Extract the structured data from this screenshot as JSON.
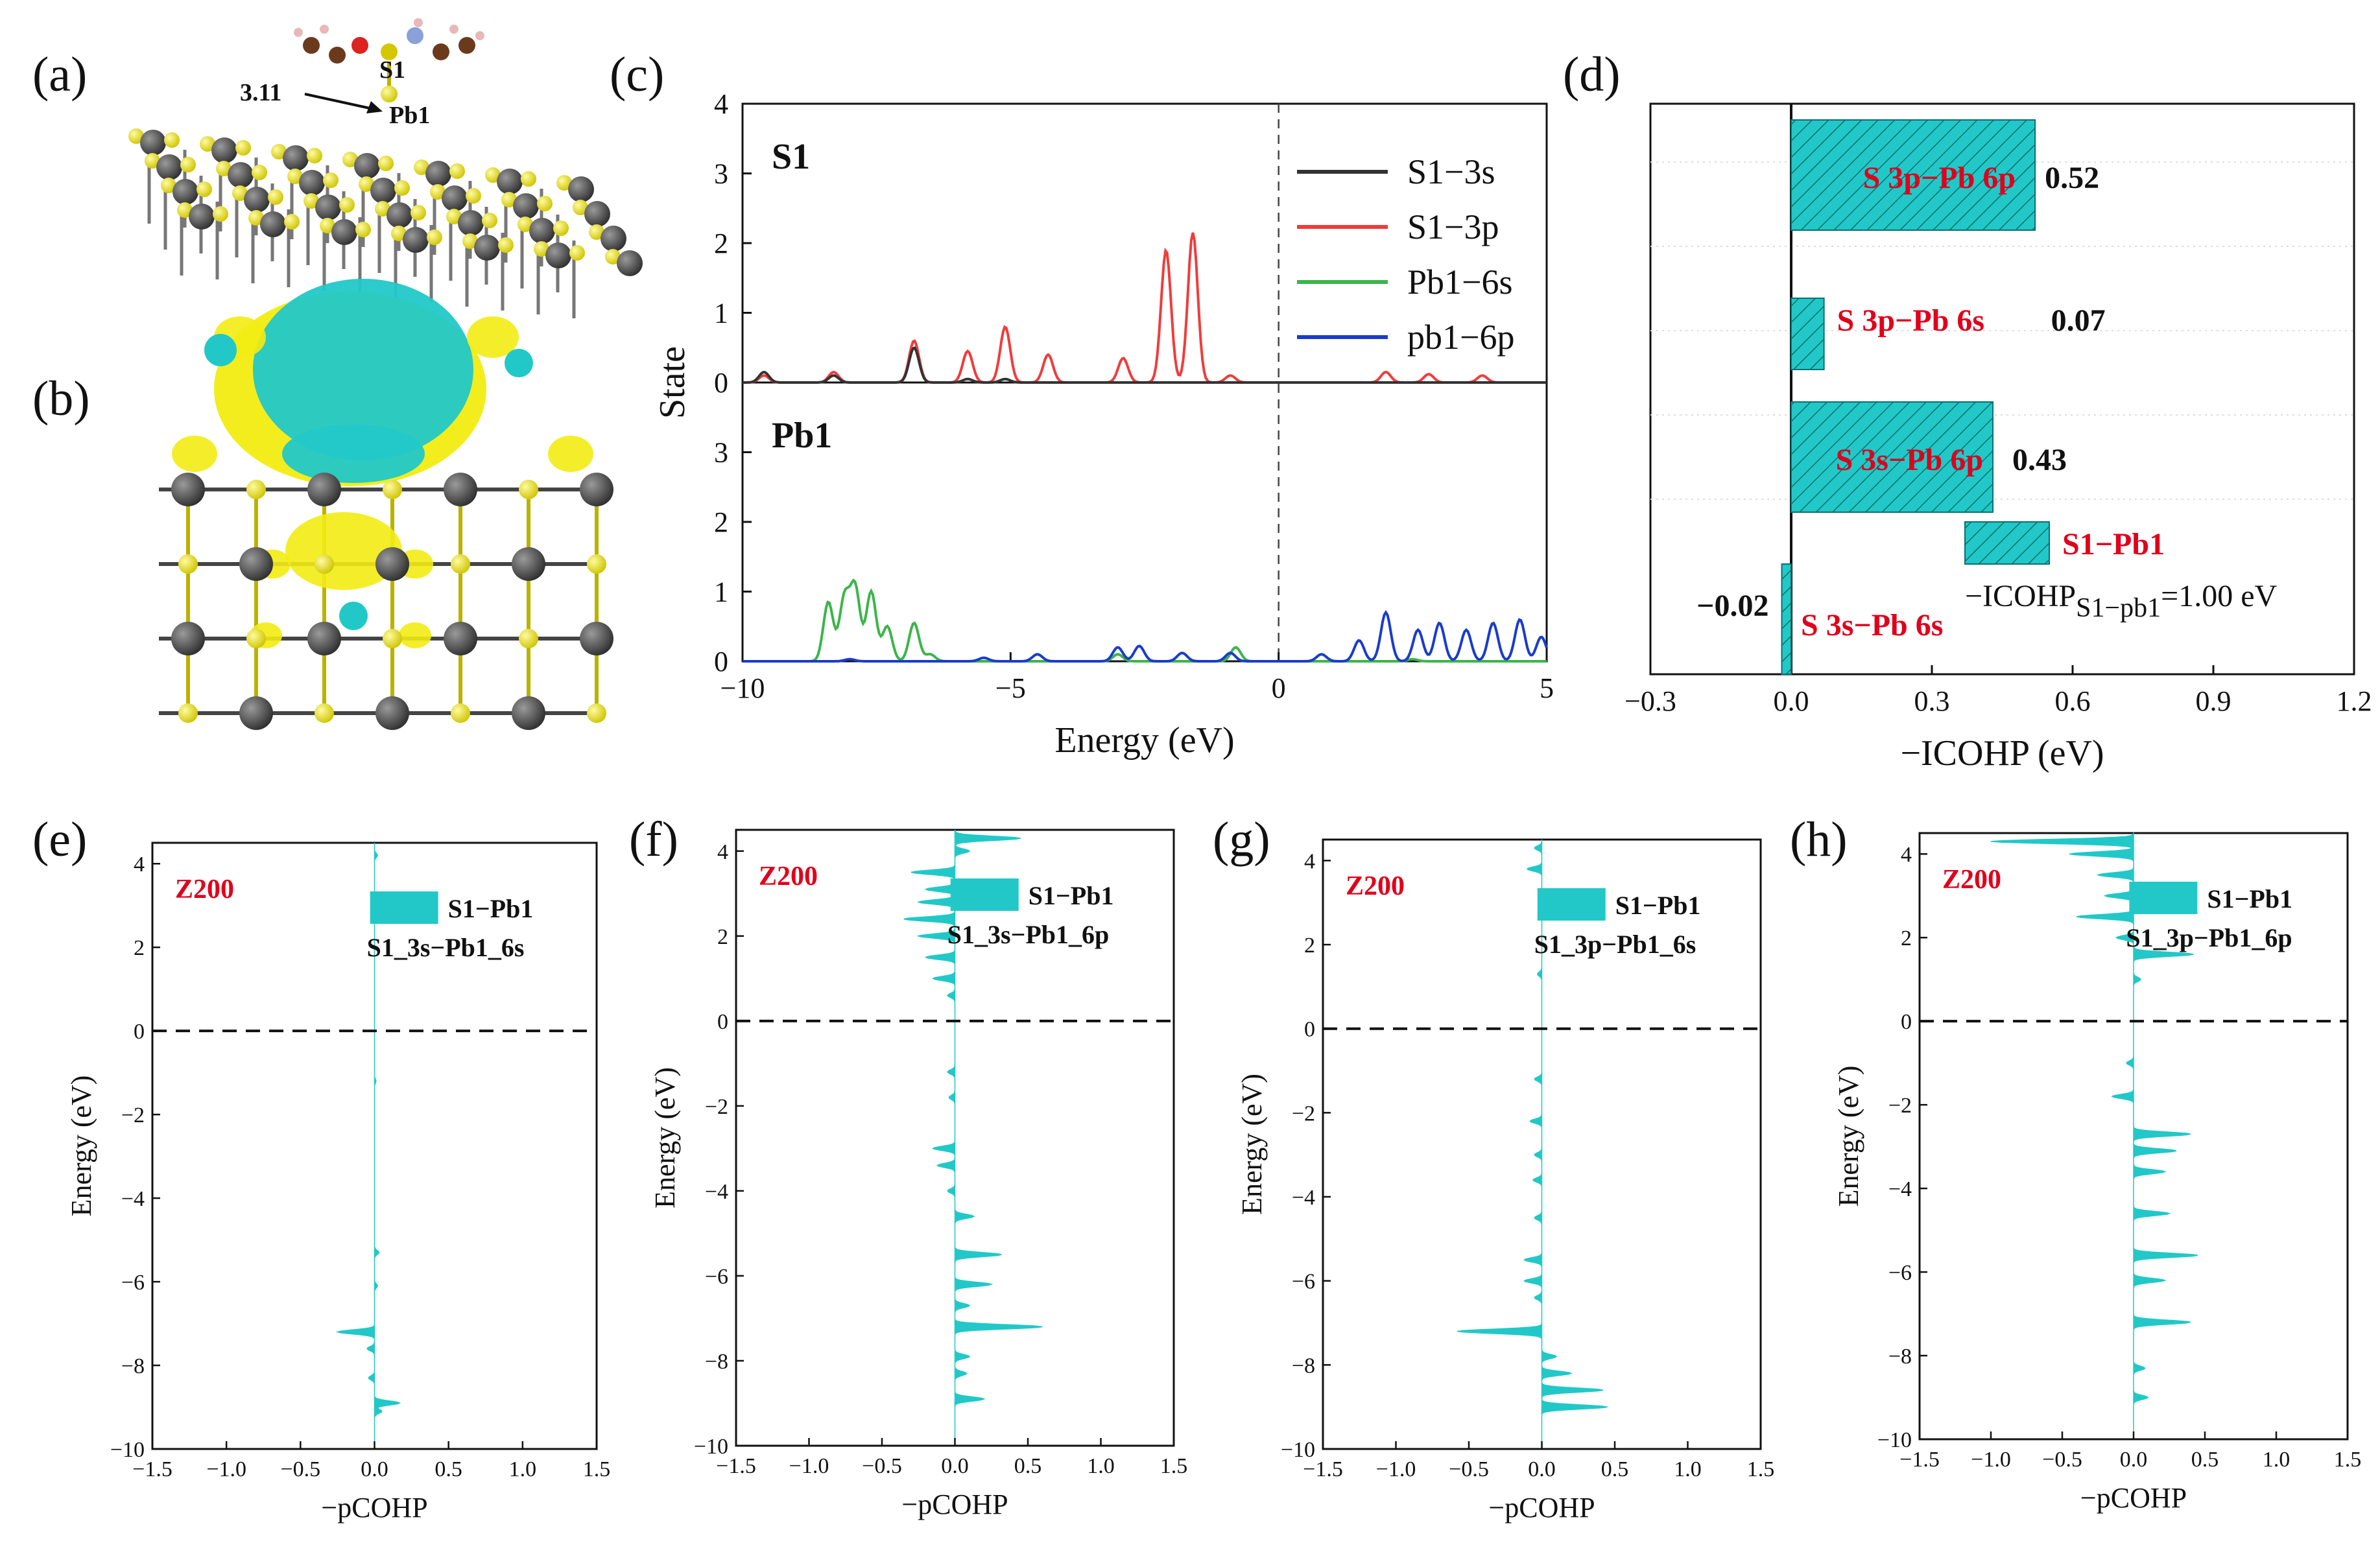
{
  "panel_labels": {
    "a": "(a)",
    "b": "(b)",
    "c": "(c)",
    "d": "(d)",
    "e": "(e)",
    "f": "(f)",
    "g": "(g)",
    "h": "(h)"
  },
  "panel_a": {
    "distance": "3.11",
    "s_label": "S1",
    "pb_label": "Pb1"
  },
  "colors": {
    "cyan": "#22c8c8",
    "yellow": "#f2ec12",
    "s3s": "#333333",
    "s3p": "#f03c3c",
    "pb6s": "#3cb54a",
    "pb6p": "#1a3ccc",
    "red_text": "#e0001b"
  },
  "chart_data": [
    {
      "id": "c",
      "type": "line",
      "xlabel": "Energy (eV)",
      "ylabel": "State",
      "xlim": [
        -10,
        5
      ],
      "xticks": [
        "−10",
        "−5",
        "0",
        "5"
      ],
      "top": {
        "label": "S1",
        "ylim": [
          0,
          4
        ],
        "yticks": [
          "0",
          "1",
          "2",
          "3",
          "4"
        ]
      },
      "bottom": {
        "label": "Pb1",
        "ylim": [
          0,
          4
        ],
        "yticks": [
          "0",
          "1",
          "2",
          "3"
        ]
      },
      "legend": [
        "S1−3s",
        "S1−3p",
        "Pb1−6s",
        "pb1−6p"
      ],
      "series": [
        {
          "name": "S1-3p",
          "panel": "top",
          "peaks": [
            [
              -9.6,
              0.1
            ],
            [
              -8.3,
              0.15
            ],
            [
              -6.8,
              0.6
            ],
            [
              -5.8,
              0.45
            ],
            [
              -5.1,
              0.8
            ],
            [
              -4.3,
              0.4
            ],
            [
              -2.9,
              0.35
            ],
            [
              -2.1,
              1.9
            ],
            [
              -1.6,
              2.15
            ],
            [
              -0.9,
              0.1
            ],
            [
              2.0,
              0.15
            ],
            [
              2.8,
              0.12
            ],
            [
              3.8,
              0.1
            ]
          ]
        },
        {
          "name": "S1-3s",
          "panel": "top",
          "peaks": [
            [
              -9.6,
              0.15
            ],
            [
              -8.3,
              0.1
            ],
            [
              -6.8,
              0.5
            ],
            [
              -5.8,
              0.05
            ],
            [
              -5.1,
              0.05
            ]
          ]
        },
        {
          "name": "Pb1-6s",
          "panel": "bottom",
          "peaks": [
            [
              -8.4,
              0.85
            ],
            [
              -8.1,
              0.9
            ],
            [
              -7.9,
              1.05
            ],
            [
              -7.6,
              1.0
            ],
            [
              -7.3,
              0.5
            ],
            [
              -6.8,
              0.55
            ],
            [
              -6.5,
              0.1
            ],
            [
              -3.0,
              0.1
            ],
            [
              -0.8,
              0.2
            ],
            [
              2.5,
              0.03
            ]
          ]
        },
        {
          "name": "pb1-6p",
          "panel": "bottom",
          "peaks": [
            [
              -8.0,
              0.03
            ],
            [
              -5.5,
              0.05
            ],
            [
              -4.5,
              0.1
            ],
            [
              -3.0,
              0.2
            ],
            [
              -2.6,
              0.22
            ],
            [
              -1.8,
              0.12
            ],
            [
              -0.9,
              0.12
            ],
            [
              0.8,
              0.1
            ],
            [
              1.5,
              0.3
            ],
            [
              2.0,
              0.7
            ],
            [
              2.6,
              0.45
            ],
            [
              3.0,
              0.55
            ],
            [
              3.5,
              0.45
            ],
            [
              4.0,
              0.55
            ],
            [
              4.5,
              0.6
            ],
            [
              4.9,
              0.35
            ]
          ]
        }
      ]
    },
    {
      "id": "d",
      "type": "bar",
      "orientation": "horizontal",
      "xlabel": "−ICOHP (eV)",
      "xlim": [
        -0.3,
        1.2
      ],
      "xticks": [
        "−0.3",
        "0.0",
        "0.3",
        "0.6",
        "0.9",
        "1.2"
      ],
      "categories": [
        "S 3p−Pb 6p",
        "S 3p−Pb 6s",
        "S 3s−Pb 6p",
        "S 3s−Pb 6s"
      ],
      "values": [
        0.52,
        0.07,
        0.43,
        -0.02
      ],
      "value_labels": [
        "0.52",
        "0.07",
        "0.43",
        "−0.02"
      ],
      "legend_label": "S1−Pb1",
      "annotation_main": "−ICOHP",
      "annotation_sub": "S1−pb1",
      "annotation_tail": "=1.00 eV"
    },
    {
      "id": "e",
      "type": "area",
      "orientation": "horizontal",
      "title_tag": "Z200",
      "legend_title": "S1−Pb1",
      "legend_sub": "S1_3s−Pb1_6s",
      "xlabel": "−pCOHP",
      "ylabel": "Energy (eV)",
      "xlim": [
        -1.5,
        1.5
      ],
      "ylim": [
        -10,
        4.5
      ],
      "xticks": [
        "−1.5",
        "−1.0",
        "−0.5",
        "0.0",
        "0.5",
        "1.0",
        "1.5"
      ],
      "yticks": [
        "−10",
        "−8",
        "−6",
        "−4",
        "−2",
        "0",
        "2",
        "4"
      ],
      "peaks": [
        [
          4.2,
          0.02
        ],
        [
          -1.2,
          0.01
        ],
        [
          -5.3,
          0.03
        ],
        [
          -6.1,
          0.02
        ],
        [
          -7.2,
          -0.25
        ],
        [
          -7.6,
          -0.05
        ],
        [
          -8.3,
          -0.04
        ],
        [
          -8.9,
          0.17
        ],
        [
          -9.1,
          0.05
        ]
      ]
    },
    {
      "id": "f",
      "type": "area",
      "orientation": "horizontal",
      "title_tag": "Z200",
      "legend_title": "S1−Pb1",
      "legend_sub": "S1_3s−Pb1_6p",
      "xlabel": "−pCOHP",
      "ylabel": "Energy (eV)",
      "xlim": [
        -1.5,
        1.5
      ],
      "ylim": [
        -10,
        4.5
      ],
      "xticks": [
        "−1.5",
        "−1.0",
        "−0.5",
        "0.0",
        "0.5",
        "1.0",
        "1.5"
      ],
      "yticks": [
        "−10",
        "−8",
        "−6",
        "−4",
        "−2",
        "0",
        "2",
        "4"
      ],
      "peaks": [
        [
          4.3,
          0.45
        ],
        [
          4.0,
          0.1
        ],
        [
          3.5,
          -0.3
        ],
        [
          3.1,
          -0.2
        ],
        [
          2.8,
          -0.25
        ],
        [
          2.4,
          -0.35
        ],
        [
          2.0,
          -0.25
        ],
        [
          1.5,
          -0.2
        ],
        [
          1.0,
          -0.15
        ],
        [
          0.6,
          -0.05
        ],
        [
          -1.2,
          -0.05
        ],
        [
          -1.8,
          -0.04
        ],
        [
          -3.0,
          -0.15
        ],
        [
          -3.4,
          -0.12
        ],
        [
          -4.0,
          -0.05
        ],
        [
          -4.6,
          0.13
        ],
        [
          -5.5,
          0.32
        ],
        [
          -6.2,
          0.25
        ],
        [
          -6.7,
          0.1
        ],
        [
          -7.2,
          0.6
        ],
        [
          -7.9,
          0.1
        ],
        [
          -8.3,
          0.08
        ],
        [
          -8.9,
          0.2
        ]
      ]
    },
    {
      "id": "g",
      "type": "area",
      "orientation": "horizontal",
      "title_tag": "Z200",
      "legend_title": "S1−Pb1",
      "legend_sub": "S1_3p−Pb1_6s",
      "xlabel": "−pCOHP",
      "ylabel": "Energy (eV)",
      "xlim": [
        -1.5,
        1.5
      ],
      "ylim": [
        -10,
        4.5
      ],
      "xticks": [
        "−1.5",
        "−1.0",
        "−0.5",
        "0.0",
        "0.5",
        "1.0",
        "1.5"
      ],
      "yticks": [
        "−10",
        "−8",
        "−6",
        "−4",
        "−2",
        "0",
        "2",
        "4"
      ],
      "peaks": [
        [
          4.3,
          -0.05
        ],
        [
          3.8,
          -0.1
        ],
        [
          1.3,
          -0.03
        ],
        [
          -1.2,
          -0.05
        ],
        [
          -2.2,
          -0.08
        ],
        [
          -3.0,
          -0.05
        ],
        [
          -3.6,
          -0.06
        ],
        [
          -4.5,
          -0.05
        ],
        [
          -5.5,
          -0.12
        ],
        [
          -6.0,
          -0.12
        ],
        [
          -6.4,
          -0.05
        ],
        [
          -7.2,
          -0.58
        ],
        [
          -7.8,
          0.1
        ],
        [
          -8.2,
          0.2
        ],
        [
          -8.6,
          0.42
        ],
        [
          -9.0,
          0.45
        ]
      ]
    },
    {
      "id": "h",
      "type": "area",
      "orientation": "horizontal",
      "title_tag": "Z200",
      "legend_title": "S1−Pb1",
      "legend_sub": "S1_3p−Pb1_6p",
      "xlabel": "−pCOHP",
      "ylabel": "Energy (eV)",
      "xlim": [
        -1.5,
        1.5
      ],
      "ylim": [
        -10,
        4.5
      ],
      "xticks": [
        "−1.5",
        "−1.0",
        "−0.5",
        "0.0",
        "0.5",
        "1.0",
        "1.5"
      ],
      "yticks": [
        "−10",
        "−8",
        "−6",
        "−4",
        "−2",
        "0",
        "2",
        "4"
      ],
      "peaks": [
        [
          4.3,
          -1.0
        ],
        [
          4.0,
          -0.45
        ],
        [
          3.5,
          -0.25
        ],
        [
          3.0,
          -0.2
        ],
        [
          2.5,
          -0.4
        ],
        [
          2.0,
          -0.12
        ],
        [
          1.6,
          0.42
        ],
        [
          1.0,
          0.05
        ],
        [
          -1.0,
          -0.05
        ],
        [
          -1.8,
          -0.15
        ],
        [
          -2.7,
          0.4
        ],
        [
          -3.1,
          0.3
        ],
        [
          -3.6,
          0.22
        ],
        [
          -4.6,
          0.25
        ],
        [
          -5.6,
          0.45
        ],
        [
          -6.2,
          0.22
        ],
        [
          -7.2,
          0.4
        ],
        [
          -8.3,
          0.08
        ],
        [
          -9.0,
          0.1
        ]
      ]
    }
  ]
}
